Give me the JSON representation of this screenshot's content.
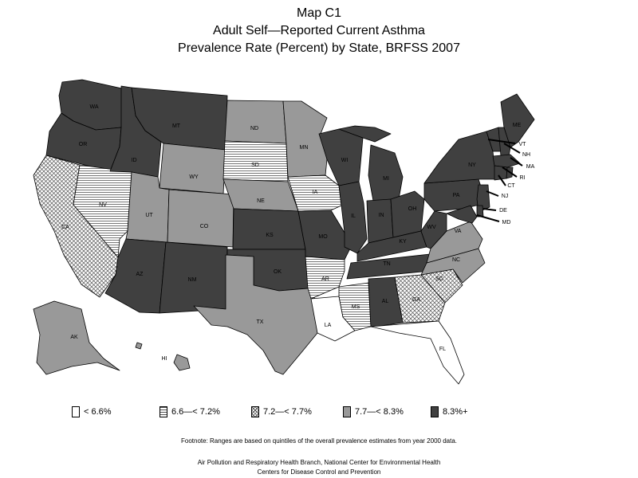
{
  "title": {
    "line1": "Map C1",
    "line2": "Adult Self—Reported Current Asthma",
    "line3": "Prevalence Rate (Percent) by State, BRFSS 2007"
  },
  "legend": [
    {
      "id": "c1",
      "label": "< 6.6%"
    },
    {
      "id": "c2",
      "label": "6.6—< 7.2%"
    },
    {
      "id": "c3",
      "label": "7.2—< 7.7%"
    },
    {
      "id": "c4",
      "label": "7.7—< 8.3%"
    },
    {
      "id": "c5",
      "label": "8.3%+"
    }
  ],
  "colors": {
    "c1": "#ffffff",
    "c4": "#999999",
    "c5": "#404040",
    "outline": "#000000",
    "line_hatch": "#555555",
    "cross_hatch": "#555555"
  },
  "states": [
    {
      "code": "WA",
      "class": "c5"
    },
    {
      "code": "OR",
      "class": "c5"
    },
    {
      "code": "CA",
      "class": "c3"
    },
    {
      "code": "NV",
      "class": "c2"
    },
    {
      "code": "ID",
      "class": "c5"
    },
    {
      "code": "MT",
      "class": "c5"
    },
    {
      "code": "WY",
      "class": "c4"
    },
    {
      "code": "UT",
      "class": "c4"
    },
    {
      "code": "CO",
      "class": "c4"
    },
    {
      "code": "AZ",
      "class": "c5"
    },
    {
      "code": "NM",
      "class": "c5"
    },
    {
      "code": "ND",
      "class": "c4"
    },
    {
      "code": "SD",
      "class": "c2"
    },
    {
      "code": "NE",
      "class": "c4"
    },
    {
      "code": "KS",
      "class": "c5"
    },
    {
      "code": "OK",
      "class": "c5"
    },
    {
      "code": "TX",
      "class": "c4"
    },
    {
      "code": "MN",
      "class": "c4"
    },
    {
      "code": "IA",
      "class": "c2"
    },
    {
      "code": "MO",
      "class": "c5"
    },
    {
      "code": "AR",
      "class": "c2"
    },
    {
      "code": "LA",
      "class": "c1"
    },
    {
      "code": "WI",
      "class": "c5"
    },
    {
      "code": "IL",
      "class": "c5"
    },
    {
      "code": "MS",
      "class": "c2"
    },
    {
      "code": "MI",
      "class": "c5"
    },
    {
      "code": "IN",
      "class": "c5"
    },
    {
      "code": "KY",
      "class": "c5"
    },
    {
      "code": "TN",
      "class": "c5"
    },
    {
      "code": "AL",
      "class": "c5"
    },
    {
      "code": "OH",
      "class": "c5"
    },
    {
      "code": "WV",
      "class": "c5"
    },
    {
      "code": "GA",
      "class": "c3"
    },
    {
      "code": "FL",
      "class": "c1"
    },
    {
      "code": "SC",
      "class": "c3"
    },
    {
      "code": "NC",
      "class": "c4"
    },
    {
      "code": "VA",
      "class": "c4"
    },
    {
      "code": "PA",
      "class": "c5"
    },
    {
      "code": "NY",
      "class": "c5"
    },
    {
      "code": "ME",
      "class": "c5"
    },
    {
      "code": "VT",
      "class": "c5"
    },
    {
      "code": "NH",
      "class": "c5"
    },
    {
      "code": "MA",
      "class": "c5"
    },
    {
      "code": "RI",
      "class": "c5"
    },
    {
      "code": "CT",
      "class": "c5"
    },
    {
      "code": "NJ",
      "class": "c5"
    },
    {
      "code": "DE",
      "class": "c5"
    },
    {
      "code": "MD",
      "class": "c5"
    },
    {
      "code": "AK",
      "class": "c4"
    },
    {
      "code": "HI",
      "class": "c4"
    }
  ],
  "footnote": "Footnote: Ranges are based on quintiles of the overall prevalence estimates from year 2000 data.",
  "credits": {
    "line1": "Air Pollution and Respiratory Health Branch, National Center for Environmental Health",
    "line2": "Centers for Disease Control and Prevention"
  }
}
